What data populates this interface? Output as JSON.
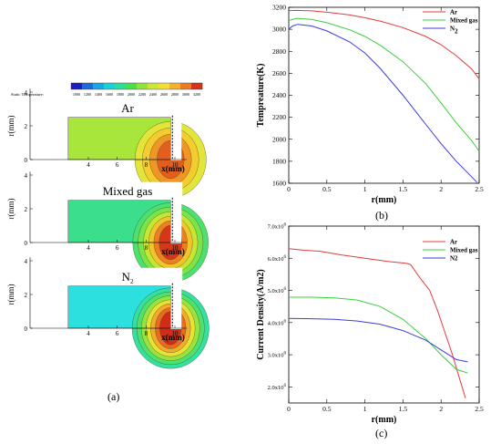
{
  "panel_a": {
    "colorbar_label": "Static Temperature:",
    "colorbar_ticks": [
      "1000",
      "1200",
      "1400",
      "1600",
      "1800",
      "2000",
      "2200",
      "2400",
      "2600",
      "2800",
      "3000",
      "3200"
    ],
    "colorbar_colors": [
      "#1f1fbf",
      "#1e6bd8",
      "#16a7e6",
      "#19d1d8",
      "#2adf9a",
      "#49e04a",
      "#8fe33b",
      "#cde536",
      "#f2e02f",
      "#f2b22a",
      "#ec7a22",
      "#d8331a"
    ],
    "subplots": [
      {
        "title": "Ar",
        "title_sub": "",
        "fill": "#a8e63c",
        "contours": [
          "#e4e53a",
          "#f4cc2f",
          "#f09627",
          "#e25e1e"
        ]
      },
      {
        "title": "Mixed gas",
        "title_sub": "",
        "fill": "#3bde8a",
        "contours": [
          "#4de06e",
          "#7ae44a",
          "#c6e633",
          "#f2c42c",
          "#ec7f22",
          "#d6361a"
        ]
      },
      {
        "title": "N",
        "title_sub": "2",
        "fill": "#2ce0df",
        "contours": [
          "#35df9f",
          "#4fe16c",
          "#98e43f",
          "#e7e336",
          "#f2ab2a",
          "#e86b20",
          "#cf2d18"
        ]
      }
    ],
    "ylabel": "r(mm)",
    "xlabel": "x(mm)",
    "yticks": [
      "0",
      "2",
      "4"
    ],
    "xticks": [
      "4",
      "6",
      "8",
      "10"
    ],
    "caption": "(a)"
  },
  "chart_data": [
    {
      "type": "line",
      "panel": "(b)",
      "xlabel": "r(mm)",
      "ylabel": "Tempreature(K)",
      "xlim": [
        0,
        2.5
      ],
      "ylim": [
        1600,
        3200
      ],
      "xticks": [
        0,
        0.5,
        1,
        1.5,
        2,
        2.5
      ],
      "yticks": [
        1600,
        1800,
        2000,
        2200,
        2400,
        2600,
        2800,
        3000,
        3200
      ],
      "legend_position": "top-right",
      "series": [
        {
          "name": "Ar",
          "name_sub": "",
          "color": "#e03c3c",
          "x": [
            0,
            0.1,
            0.3,
            0.5,
            0.8,
            1.0,
            1.2,
            1.5,
            1.8,
            2.0,
            2.2,
            2.4,
            2.5
          ],
          "y": [
            3170,
            3172,
            3168,
            3155,
            3130,
            3105,
            3075,
            3015,
            2935,
            2860,
            2760,
            2640,
            2550
          ]
        },
        {
          "name": "Mixed gas",
          "name_sub": "",
          "color": "#3ccf3c",
          "x": [
            0,
            0.1,
            0.3,
            0.5,
            0.8,
            1.0,
            1.2,
            1.5,
            1.8,
            2.0,
            2.2,
            2.4,
            2.5
          ],
          "y": [
            3080,
            3100,
            3090,
            3060,
            2995,
            2935,
            2855,
            2705,
            2505,
            2330,
            2150,
            1990,
            1890
          ]
        },
        {
          "name": "N",
          "name_sub": "2",
          "color": "#3c3ce0",
          "x": [
            0,
            0.05,
            0.12,
            0.3,
            0.5,
            0.8,
            1.0,
            1.2,
            1.5,
            1.8,
            2.0,
            2.2,
            2.4,
            2.47
          ],
          "y": [
            3000,
            3030,
            3045,
            3030,
            2985,
            2885,
            2785,
            2645,
            2400,
            2135,
            1960,
            1800,
            1660,
            1610
          ]
        }
      ],
      "caption": "(b)"
    },
    {
      "type": "line",
      "panel": "(c)",
      "xlabel": "r(mm)",
      "ylabel": "Current Density(A/m2)",
      "xlim": [
        0,
        2.5
      ],
      "ylim": [
        1500000,
        7000000
      ],
      "xticks": [
        0,
        0.5,
        1,
        1.5,
        2,
        2.5
      ],
      "yticks": [
        2000000,
        3000000,
        4000000,
        5000000,
        6000000,
        7000000
      ],
      "ytick_labels": [
        {
          "mantissa": "2.0x10",
          "exp": "6"
        },
        {
          "mantissa": "3.0x10",
          "exp": "6"
        },
        {
          "mantissa": "4.0x10",
          "exp": "6"
        },
        {
          "mantissa": "5.0x10",
          "exp": "6"
        },
        {
          "mantissa": "6.0x10",
          "exp": "6"
        },
        {
          "mantissa": "7.0x10",
          "exp": "6"
        }
      ],
      "legend_position": "top-right",
      "series": [
        {
          "name": "Ar",
          "color": "#e03c3c",
          "x": [
            0,
            0.2,
            0.4,
            0.7,
            1.0,
            1.3,
            1.55,
            1.6,
            1.72,
            1.85,
            1.95,
            2.05,
            2.15,
            2.25,
            2.32
          ],
          "y": [
            6300000,
            6250000,
            6220000,
            6100000,
            6000000,
            5900000,
            5840000,
            5800000,
            5400000,
            5000000,
            4400000,
            3700000,
            3000000,
            2200000,
            1650000
          ]
        },
        {
          "name": "Mixed gas",
          "color": "#3ccf3c",
          "x": [
            0,
            0.3,
            0.6,
            0.9,
            1.2,
            1.5,
            1.8,
            2.0,
            2.2,
            2.35
          ],
          "y": [
            4790000,
            4790000,
            4770000,
            4700000,
            4500000,
            4100000,
            3500000,
            3000000,
            2550000,
            2430000
          ]
        },
        {
          "name": "N2",
          "color": "#3c3ce0",
          "x": [
            0,
            0.3,
            0.6,
            0.9,
            1.2,
            1.5,
            1.8,
            2.0,
            2.2,
            2.35
          ],
          "y": [
            4130000,
            4120000,
            4100000,
            4050000,
            3950000,
            3750000,
            3450000,
            3150000,
            2850000,
            2780000
          ]
        }
      ],
      "caption": "(c)"
    }
  ]
}
